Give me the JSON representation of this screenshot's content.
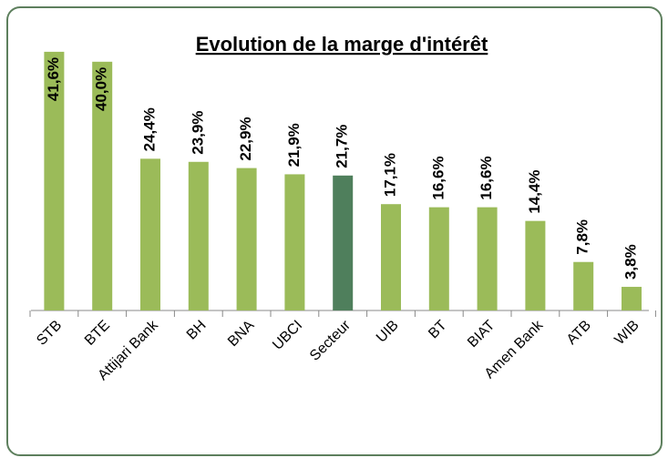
{
  "chart_data": {
    "type": "bar",
    "title": "Evolution de la marge d'intérêt",
    "categories": [
      "STB",
      "BTE",
      "Attijari Bank",
      "BH",
      "BNA",
      "UBCI",
      "Secteur",
      "UIB",
      "BT",
      "BIAT",
      "Amen Bank",
      "ATB",
      "WIB"
    ],
    "values": [
      41.6,
      40.0,
      24.4,
      23.9,
      22.9,
      21.9,
      21.7,
      17.1,
      16.6,
      16.6,
      14.4,
      7.8,
      3.8
    ],
    "value_labels": [
      "41,6%",
      "40,0%",
      "24,4%",
      "23,9%",
      "22,9%",
      "21,9%",
      "21,7%",
      "17,1%",
      "16,6%",
      "16,6%",
      "14,4%",
      "7,8%",
      "3,8%"
    ],
    "colors": [
      "#9bbb59",
      "#9bbb59",
      "#9bbb59",
      "#9bbb59",
      "#9bbb59",
      "#9bbb59",
      "#4f7f5c",
      "#9bbb59",
      "#9bbb59",
      "#9bbb59",
      "#9bbb59",
      "#9bbb59",
      "#9bbb59"
    ]
  }
}
